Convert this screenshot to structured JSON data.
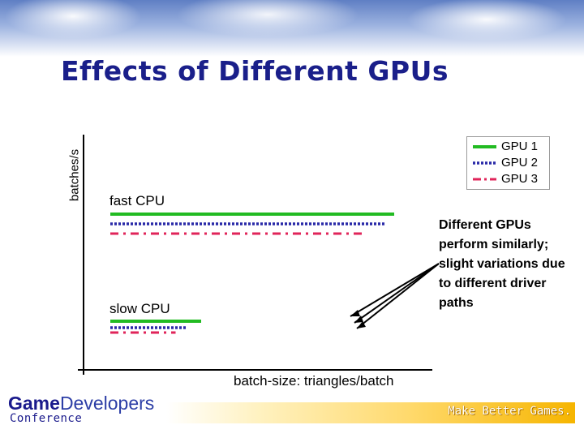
{
  "slide": {
    "title": "Effects of Different GPUs",
    "note": "Different GPUs perform similarly; slight variations due to different driver paths",
    "tagline": "Make Better Games.",
    "logo": {
      "brand_game": "Game",
      "brand_dev": "Developers",
      "brand_conf": "Conference"
    }
  },
  "chart_data": {
    "type": "line",
    "title": "Effects of Different GPUs",
    "xlabel": "batch-size: triangles/batch",
    "ylabel": "batches/s",
    "ticks": false,
    "grid": false,
    "legend_position": "top-right",
    "groups": [
      {
        "label": "fast CPU",
        "series_values": {
          "GPU 1": 1.0,
          "GPU 2": 0.97,
          "GPU 3": 0.9
        }
      },
      {
        "label": "slow CPU",
        "series_values": {
          "GPU 1": 0.32,
          "GPU 2": 0.27,
          "GPU 3": 0.23
        }
      }
    ],
    "series": [
      {
        "name": "GPU 1",
        "style": "solid",
        "color": "#22bb22"
      },
      {
        "name": "GPU 2",
        "style": "dotted",
        "color": "#2a2aa8"
      },
      {
        "name": "GPU 3",
        "style": "dash-dot",
        "color": "#e0245a"
      }
    ]
  }
}
